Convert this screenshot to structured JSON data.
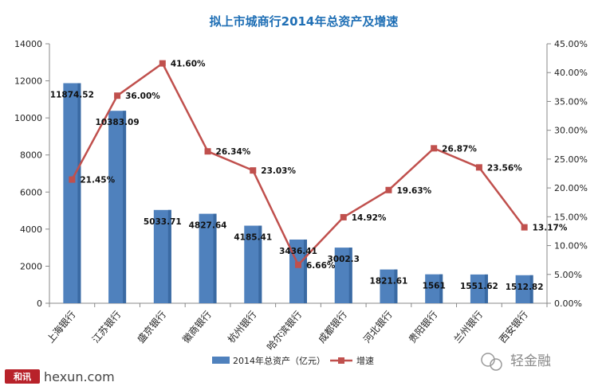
{
  "chart_data": {
    "type": "bar+line",
    "title": "拟上市城商行2014年总资产及增速",
    "categories": [
      "上海银行",
      "江苏银行",
      "盛京银行",
      "徽商银行",
      "杭州银行",
      "哈尔滨银行",
      "成都银行",
      "河北银行",
      "贵阳银行",
      "兰州银行",
      "西安银行"
    ],
    "series": [
      {
        "name": "2014年总资产（亿元）",
        "type": "bar",
        "axis": "left",
        "values": [
          11874.52,
          10383.09,
          5033.71,
          4827.64,
          4185.41,
          3436.41,
          3002.3,
          1821.61,
          1561,
          1551.62,
          1512.82
        ],
        "labels": [
          "11874.52",
          "10383.09",
          "5033.71",
          "4827.64",
          "4185.41",
          "3436.41",
          "3002.3",
          "1821.61",
          "1561",
          "1551.62",
          "1512.82"
        ]
      },
      {
        "name": "增速",
        "type": "line",
        "axis": "right",
        "values": [
          21.45,
          36.0,
          41.6,
          26.34,
          23.03,
          6.66,
          14.92,
          19.63,
          26.87,
          23.56,
          13.17
        ],
        "labels": [
          "21.45%",
          "36.00%",
          "41.60%",
          "26.34%",
          "23.03%",
          "6.66%",
          "14.92%",
          "19.63%",
          "26.87%",
          "23.56%",
          "13.17%"
        ]
      }
    ],
    "y_left": {
      "min": 0,
      "max": 14000,
      "step": 2000,
      "ticks": [
        "0",
        "2000",
        "4000",
        "6000",
        "8000",
        "10000",
        "12000",
        "14000"
      ]
    },
    "y_right": {
      "min": 0,
      "max": 45,
      "step": 5,
      "ticks": [
        "0.00%",
        "5.00%",
        "10.00%",
        "15.00%",
        "20.00%",
        "25.00%",
        "30.00%",
        "35.00%",
        "40.00%",
        "45.00%"
      ]
    },
    "legend": {
      "position": "bottom",
      "items": [
        "2014年总资产（亿元）",
        "增速"
      ]
    },
    "grid": false
  },
  "colors": {
    "bar": "#4F81BD",
    "bar_dark": "#3A6AA3",
    "line": "#C0504D",
    "axis": "#888888",
    "title": "#1F6FB5"
  },
  "watermarks": {
    "left_logo": "和讯",
    "left_site": "hexun.com",
    "right_brand": "轻金融"
  }
}
